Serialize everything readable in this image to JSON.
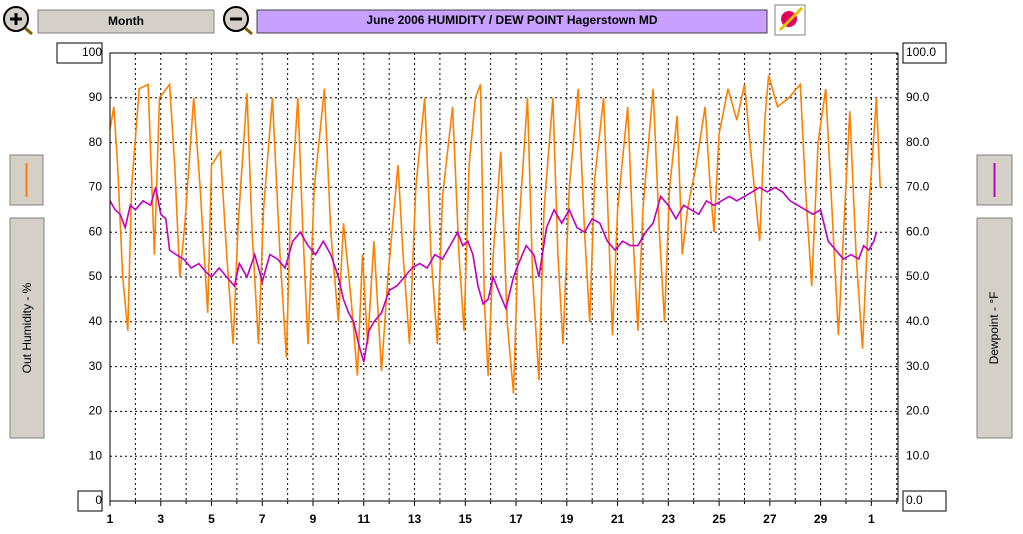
{
  "chart_data": {
    "type": "line",
    "title": "June  2006  HUMIDITY / DEW POINT  Hagerstown MD",
    "period": "Month",
    "ylabel": "Out Humidity - %",
    "y2label": "Dewpoint - °F",
    "xlim": [
      1,
      32.05
    ],
    "xticks": [
      1,
      3,
      5,
      7,
      9,
      11,
      13,
      15,
      17,
      19,
      21,
      23,
      25,
      27,
      29,
      {
        "value": 31,
        "label": "1"
      }
    ],
    "x_minor_ticks": [
      2,
      4,
      6,
      8,
      10,
      12,
      14,
      16,
      18,
      20,
      22,
      24,
      26,
      28,
      30,
      32
    ],
    "ylim": [
      0,
      100
    ],
    "yticks": [
      0,
      10,
      20,
      30,
      40,
      50,
      60,
      70,
      80,
      90,
      100
    ],
    "y2lim": [
      0,
      100
    ],
    "y2ticks": [
      {
        "value": 0,
        "label": "0.0"
      },
      {
        "value": 10,
        "label": "10.0"
      },
      {
        "value": 20,
        "label": "20.0"
      },
      {
        "value": 30,
        "label": "30.0"
      },
      {
        "value": 40,
        "label": "40.0"
      },
      {
        "value": 50,
        "label": "50.0"
      },
      {
        "value": 60,
        "label": "60.0"
      },
      {
        "value": 70,
        "label": "70.0"
      },
      {
        "value": 80,
        "label": "80.0"
      },
      {
        "value": 90,
        "label": "90.0"
      },
      {
        "value": 100,
        "label": "100.0"
      }
    ],
    "grid": true,
    "series": [
      {
        "color": "#ff8000",
        "axis": "y",
        "x": [
          1.0,
          1.15,
          1.3,
          1.5,
          1.7,
          1.85,
          2.15,
          2.5,
          2.75,
          2.95,
          3.35,
          3.55,
          3.75,
          3.95,
          4.3,
          4.55,
          4.85,
          5.0,
          5.35,
          5.6,
          5.85,
          6.05,
          6.4,
          6.6,
          6.85,
          7.05,
          7.4,
          7.7,
          7.95,
          8.1,
          8.4,
          8.6,
          8.8,
          9.05,
          9.45,
          9.7,
          10.0,
          10.2,
          10.5,
          10.75,
          10.95,
          11.15,
          11.4,
          11.7,
          11.95,
          12.35,
          12.55,
          12.8,
          13.05,
          13.4,
          13.65,
          13.9,
          14.1,
          14.5,
          14.75,
          14.95,
          15.15,
          15.4,
          15.6,
          15.75,
          15.9,
          16.1,
          16.4,
          16.65,
          16.9,
          17.1,
          17.45,
          17.65,
          17.9,
          18.1,
          18.45,
          18.65,
          18.85,
          19.1,
          19.45,
          19.7,
          19.9,
          20.1,
          20.45,
          20.65,
          20.8,
          21.0,
          21.4,
          21.6,
          21.8,
          22.0,
          22.4,
          22.65,
          22.85,
          23.05,
          23.35,
          23.55,
          23.75,
          24.1,
          24.45,
          24.65,
          24.8,
          25.0,
          25.35,
          25.7,
          26.0,
          26.3,
          26.6,
          26.8,
          26.95,
          27.3,
          27.75,
          28.2,
          28.4,
          28.65,
          28.9,
          29.2,
          29.45,
          29.7,
          29.95,
          30.15,
          30.4,
          30.65,
          30.9,
          31.2,
          31.35
        ],
        "values": [
          83,
          88,
          75,
          50,
          38,
          70,
          92,
          93,
          55,
          90,
          93,
          75,
          50,
          62,
          90,
          70,
          42,
          75,
          78,
          55,
          35,
          62,
          91,
          60,
          35,
          65,
          90,
          55,
          32,
          62,
          90,
          60,
          35,
          70,
          92,
          60,
          40,
          62,
          45,
          28,
          55,
          35,
          58,
          29,
          50,
          75,
          55,
          35,
          70,
          90,
          55,
          35,
          68,
          88,
          55,
          38,
          75,
          90,
          93,
          45,
          28,
          55,
          78,
          40,
          24,
          60,
          90,
          50,
          27,
          65,
          90,
          55,
          35,
          70,
          92,
          60,
          40,
          72,
          90,
          60,
          37,
          65,
          88,
          60,
          38,
          65,
          92,
          60,
          40,
          70,
          86,
          55,
          65,
          75,
          88,
          70,
          60,
          82,
          92,
          85,
          93,
          75,
          58,
          85,
          95,
          88,
          90,
          93,
          70,
          48,
          80,
          92,
          65,
          37,
          65,
          87,
          55,
          34,
          65,
          90,
          70
        ]
      },
      {
        "color": "#c000c0",
        "axis": "y2",
        "x": [
          1.0,
          1.2,
          1.4,
          1.6,
          1.8,
          2.0,
          2.3,
          2.6,
          2.8,
          3.0,
          3.2,
          3.35,
          3.6,
          3.9,
          4.2,
          4.5,
          4.8,
          5.0,
          5.3,
          5.6,
          5.9,
          6.1,
          6.4,
          6.7,
          7.0,
          7.3,
          7.6,
          7.9,
          8.2,
          8.5,
          8.8,
          9.1,
          9.4,
          9.7,
          10.0,
          10.2,
          10.4,
          10.6,
          10.8,
          11.0,
          11.2,
          11.4,
          11.7,
          12.0,
          12.3,
          12.6,
          12.9,
          13.2,
          13.5,
          13.8,
          14.1,
          14.4,
          14.7,
          14.9,
          15.1,
          15.3,
          15.5,
          15.7,
          15.9,
          16.1,
          16.3,
          16.6,
          16.9,
          17.1,
          17.4,
          17.7,
          17.9,
          18.2,
          18.5,
          18.8,
          19.1,
          19.4,
          19.7,
          20.0,
          20.3,
          20.6,
          20.9,
          21.2,
          21.5,
          21.8,
          22.1,
          22.4,
          22.7,
          23.0,
          23.3,
          23.6,
          23.9,
          24.2,
          24.5,
          24.8,
          25.1,
          25.4,
          25.7,
          26.0,
          26.3,
          26.6,
          26.9,
          27.2,
          27.5,
          27.8,
          28.1,
          28.4,
          28.7,
          29.0,
          29.3,
          29.6,
          29.9,
          30.2,
          30.5,
          30.7,
          30.9,
          31.1,
          31.2
        ],
        "values": [
          67,
          65,
          64,
          61,
          66,
          65,
          67,
          66,
          70,
          64,
          63,
          56,
          55,
          54,
          52,
          53,
          51,
          50,
          52,
          50,
          48,
          53,
          50,
          55,
          49,
          55,
          54,
          52,
          58,
          60,
          57,
          55,
          58,
          55,
          50,
          45,
          42,
          40,
          35,
          31,
          38,
          40,
          42,
          47,
          48,
          50,
          52,
          53,
          52,
          55,
          54,
          57,
          60,
          57,
          58,
          55,
          48,
          44,
          45,
          50,
          47,
          43,
          50,
          53,
          57,
          55,
          50,
          61,
          65,
          62,
          65,
          61,
          60,
          63,
          62,
          58,
          56,
          58,
          57,
          57,
          60,
          62,
          68,
          66,
          63,
          66,
          65,
          64,
          67,
          66,
          67,
          68,
          67,
          68,
          69,
          70,
          69,
          70,
          69,
          67,
          66,
          65,
          64,
          65,
          58,
          56,
          54,
          55,
          54,
          57,
          56,
          58,
          60
        ]
      }
    ]
  }
}
